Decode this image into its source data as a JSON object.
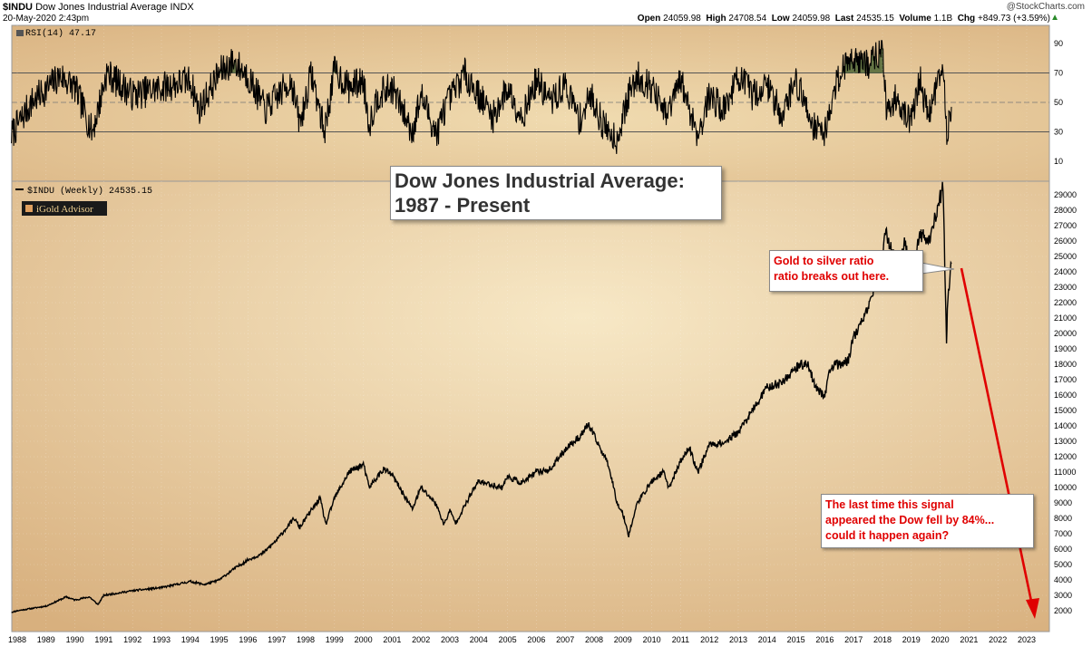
{
  "header": {
    "symbol": "$INDU",
    "name": "Dow Jones Industrial Average",
    "exchange": "INDX",
    "date": "20-May-2020 2:43pm",
    "watermark": "@StockCharts.com",
    "open_label": "Open",
    "open_value": "24059.98",
    "high_label": "High",
    "high_value": "24708.54",
    "low_label": "Low",
    "low_value": "24059.98",
    "last_label": "Last",
    "last_value": "24535.15",
    "volume_label": "Volume",
    "volume_value": "1.1B",
    "chg_label": "Chg",
    "chg_value": "+849.73 (+3.59%)"
  },
  "rsi_panel": {
    "label": "RSI(14) 47.17",
    "ticks": [
      90,
      70,
      50,
      30,
      10
    ],
    "overbought": 70,
    "oversold": 30,
    "midline": 50
  },
  "price_panel": {
    "label": "$INDU (Weekly) 24535.15",
    "badge": "iGold Advisor",
    "ticks": [
      2000,
      3000,
      4000,
      5000,
      6000,
      7000,
      8000,
      9000,
      10000,
      11000,
      12000,
      13000,
      14000,
      15000,
      16000,
      17000,
      18000,
      19000,
      20000,
      21000,
      22000,
      23000,
      24000,
      25000,
      26000,
      27000,
      28000,
      29000
    ]
  },
  "annotations": {
    "title": "Dow Jones Industrial Average:\n1987 - Present",
    "gold_silver": "Gold to silver ratio\nratio breaks out here.",
    "signal": "The last time this signal\nappeared the Dow fell by 84%...\ncould it happen again?"
  },
  "x_axis": {
    "years": [
      "1988",
      "1989",
      "1990",
      "1991",
      "1992",
      "1993",
      "1994",
      "1995",
      "1996",
      "1997",
      "1998",
      "1999",
      "2000",
      "2001",
      "2002",
      "2003",
      "2004",
      "2005",
      "2006",
      "2007",
      "2008",
      "2009",
      "2010",
      "2011",
      "2012",
      "2013",
      "2014",
      "2015",
      "2016",
      "2017",
      "2018",
      "2019",
      "2020",
      "2021",
      "2022",
      "2023"
    ]
  },
  "colors": {
    "background_light": "#f7e8c6",
    "background_dark": "#d8b07e",
    "price_line": "#000000",
    "rsi_line": "#000000",
    "rsi_fill": "#3a5a2a",
    "arrow": "#e00000",
    "callout_text": "#e00000"
  },
  "chart_data": [
    {
      "type": "line",
      "title": "RSI(14) 47.17",
      "ylim": [
        0,
        100
      ],
      "series": [
        {
          "name": "RSI(14) 47.17",
          "x": [
            1987.8,
            1988.5,
            1989.5,
            1990.0,
            1990.6,
            1990.8,
            1991.1,
            1992.0,
            1993.0,
            1994.0,
            1994.3,
            1995.0,
            1995.5,
            1996.0,
            1996.6,
            1997.5,
            1997.8,
            1998.2,
            1998.65,
            1999.0,
            1999.5,
            2000.0,
            2000.2,
            2000.5,
            2001.0,
            2001.7,
            2002.0,
            2002.55,
            2002.8,
            2003.5,
            2004.0,
            2004.5,
            2005.0,
            2005.5,
            2006.0,
            2006.5,
            2007.0,
            2007.5,
            2007.9,
            2008.3,
            2008.8,
            2009.2,
            2009.5,
            2010.0,
            2010.5,
            2011.0,
            2011.6,
            2012.0,
            2012.5,
            2013.0,
            2013.5,
            2014.0,
            2014.5,
            2015.0,
            2015.6,
            2016.0,
            2016.5,
            2017.0,
            2017.5,
            2018.0,
            2018.15,
            2018.5,
            2018.95,
            2019.3,
            2019.6,
            2020.0,
            2020.15,
            2020.23,
            2020.3,
            2020.39
          ],
          "values": [
            28,
            50,
            68,
            60,
            30,
            45,
            70,
            55,
            60,
            65,
            45,
            70,
            78,
            68,
            45,
            65,
            35,
            70,
            30,
            72,
            60,
            65,
            35,
            55,
            60,
            30,
            55,
            28,
            45,
            70,
            55,
            40,
            60,
            40,
            65,
            50,
            62,
            38,
            55,
            35,
            25,
            55,
            68,
            60,
            40,
            65,
            28,
            55,
            45,
            68,
            55,
            62,
            42,
            65,
            35,
            30,
            70,
            82,
            75,
            88,
            40,
            55,
            35,
            65,
            40,
            72,
            60,
            20,
            40,
            47
          ]
        }
      ]
    },
    {
      "type": "line",
      "title": "$INDU (Weekly) 24535.15",
      "ylim": [
        1600,
        29800
      ],
      "series": [
        {
          "name": "$INDU (Weekly) 24535.15",
          "x": [
            1987.8,
            1988.0,
            1989.0,
            1989.7,
            1990.0,
            1990.5,
            1990.8,
            1991.0,
            1992.0,
            1993.0,
            1994.0,
            1994.5,
            1995.0,
            1995.5,
            1996.0,
            1996.5,
            1997.0,
            1997.6,
            1997.8,
            1998.0,
            1998.5,
            1998.7,
            1999.0,
            1999.5,
            2000.0,
            2000.2,
            2000.7,
            2001.0,
            2001.7,
            2002.0,
            2002.5,
            2002.8,
            2003.0,
            2003.2,
            2003.8,
            2004.0,
            2004.8,
            2005.0,
            2005.5,
            2006.0,
            2006.5,
            2007.0,
            2007.5,
            2007.8,
            2008.2,
            2008.5,
            2008.8,
            2009.0,
            2009.2,
            2009.5,
            2010.0,
            2010.4,
            2010.6,
            2011.0,
            2011.3,
            2011.6,
            2012.0,
            2012.5,
            2013.0,
            2013.5,
            2014.0,
            2014.5,
            2015.0,
            2015.4,
            2015.7,
            2016.0,
            2016.2,
            2016.8,
            2017.0,
            2017.5,
            2018.0,
            2018.1,
            2018.5,
            2018.8,
            2018.98,
            2019.3,
            2019.6,
            2020.0,
            2020.1,
            2020.22,
            2020.25,
            2020.35,
            2020.39
          ],
          "values": [
            1900,
            2000,
            2300,
            2900,
            2700,
            2900,
            2400,
            3000,
            3300,
            3500,
            3900,
            3700,
            4000,
            4700,
            5300,
            5700,
            6600,
            8000,
            7400,
            8000,
            9300,
            7600,
            9300,
            11000,
            11500,
            10000,
            11200,
            10800,
            8600,
            10000,
            9000,
            7600,
            8500,
            7700,
            9800,
            10400,
            10000,
            10700,
            10300,
            11000,
            11200,
            12500,
            13300,
            14100,
            12600,
            11500,
            9000,
            8300,
            6900,
            9000,
            10400,
            11000,
            10000,
            11700,
            12600,
            11000,
            12800,
            12900,
            13600,
            15000,
            16500,
            16800,
            17800,
            18100,
            16400,
            16000,
            17800,
            18200,
            19800,
            21500,
            24900,
            26600,
            24400,
            26000,
            23000,
            26500,
            26000,
            28800,
            29500,
            19200,
            21500,
            24000,
            24535
          ]
        }
      ]
    }
  ]
}
